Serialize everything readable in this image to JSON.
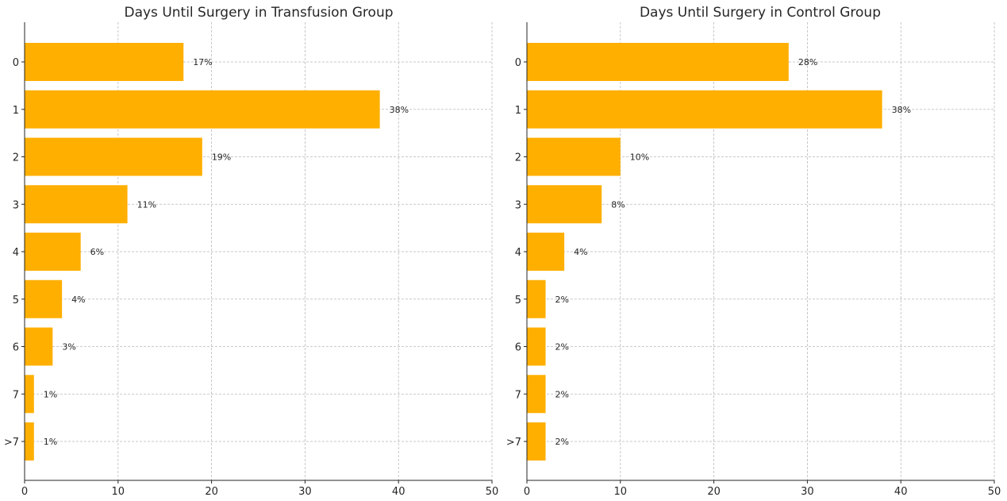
{
  "chart_data": [
    {
      "type": "bar",
      "orientation": "horizontal",
      "title": "Days Until Surgery in Transfusion Group",
      "xlabel": "",
      "ylabel": "",
      "categories": [
        "0",
        "1",
        "2",
        "3",
        "4",
        "5",
        "6",
        "7",
        ">7"
      ],
      "values": [
        17,
        38,
        19,
        11,
        6,
        4,
        3,
        1,
        1
      ],
      "value_labels": [
        "17%",
        "38%",
        "19%",
        "11%",
        "6%",
        "4%",
        "3%",
        "1%",
        "1%"
      ],
      "xlim": [
        0,
        50
      ],
      "xticks": [
        "0",
        "10",
        "20",
        "30",
        "40",
        "50"
      ],
      "grid": true,
      "bar_color": "#FFAF00"
    },
    {
      "type": "bar",
      "orientation": "horizontal",
      "title": "Days Until Surgery in Control Group",
      "xlabel": "",
      "ylabel": "",
      "categories": [
        "0",
        "1",
        "2",
        "3",
        "4",
        "5",
        "6",
        "7",
        ">7"
      ],
      "values": [
        28,
        38,
        10,
        8,
        4,
        2,
        2,
        2,
        2
      ],
      "value_labels": [
        "28%",
        "38%",
        "10%",
        "8%",
        "4%",
        "2%",
        "2%",
        "2%",
        "2%"
      ],
      "xlim": [
        0,
        50
      ],
      "xticks": [
        "0",
        "10",
        "20",
        "30",
        "40",
        "50"
      ],
      "grid": true,
      "bar_color": "#FFAF00"
    }
  ]
}
